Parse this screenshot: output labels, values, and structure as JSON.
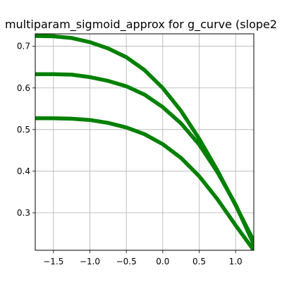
{
  "chart_data": {
    "type": "line",
    "title": "multiparam_sigmoid_approx for g_curve (slope2",
    "xlabel": "",
    "ylabel": "",
    "xlim": [
      -1.75,
      1.25
    ],
    "ylim": [
      0.21,
      0.73
    ],
    "xticks": [
      -1.5,
      -1.0,
      -0.5,
      0.0,
      0.5,
      1.0
    ],
    "xtick_labels": [
      "−1.5",
      "−1.0",
      "−0.5",
      "0.0",
      "0.5",
      "1.0"
    ],
    "yticks": [
      0.3,
      0.4,
      0.5,
      0.6,
      0.7
    ],
    "ytick_labels": [
      "0.3",
      "0.4",
      "0.5",
      "0.6",
      "0.7"
    ],
    "grid": true,
    "legend": "none",
    "color": "#008000",
    "series": [
      {
        "x": [
          -1.75,
          -1.5,
          -1.25,
          -1.0,
          -0.75,
          -0.5,
          -0.25,
          0.0,
          0.25,
          0.5,
          0.75,
          1.0,
          1.25
        ],
        "values": [
          0.725,
          0.724,
          0.72,
          0.71,
          0.695,
          0.674,
          0.643,
          0.6,
          0.545,
          0.478,
          0.402,
          0.318,
          0.232
        ]
      },
      {
        "x": [
          -1.75,
          -1.5,
          -1.25,
          -1.0,
          -0.75,
          -0.5,
          -0.25,
          0.0,
          0.25,
          0.5,
          0.75,
          1.0,
          1.25
        ],
        "values": [
          0.633,
          0.633,
          0.632,
          0.626,
          0.617,
          0.604,
          0.584,
          0.554,
          0.515,
          0.464,
          0.398,
          0.32,
          0.224
        ]
      },
      {
        "x": [
          -1.75,
          -1.5,
          -1.25,
          -1.0,
          -0.75,
          -0.5,
          -0.25,
          0.0,
          0.25,
          0.5,
          0.75,
          1.0,
          1.25
        ],
        "values": [
          0.527,
          0.527,
          0.526,
          0.523,
          0.516,
          0.505,
          0.489,
          0.465,
          0.432,
          0.388,
          0.333,
          0.27,
          0.21
        ]
      }
    ]
  }
}
